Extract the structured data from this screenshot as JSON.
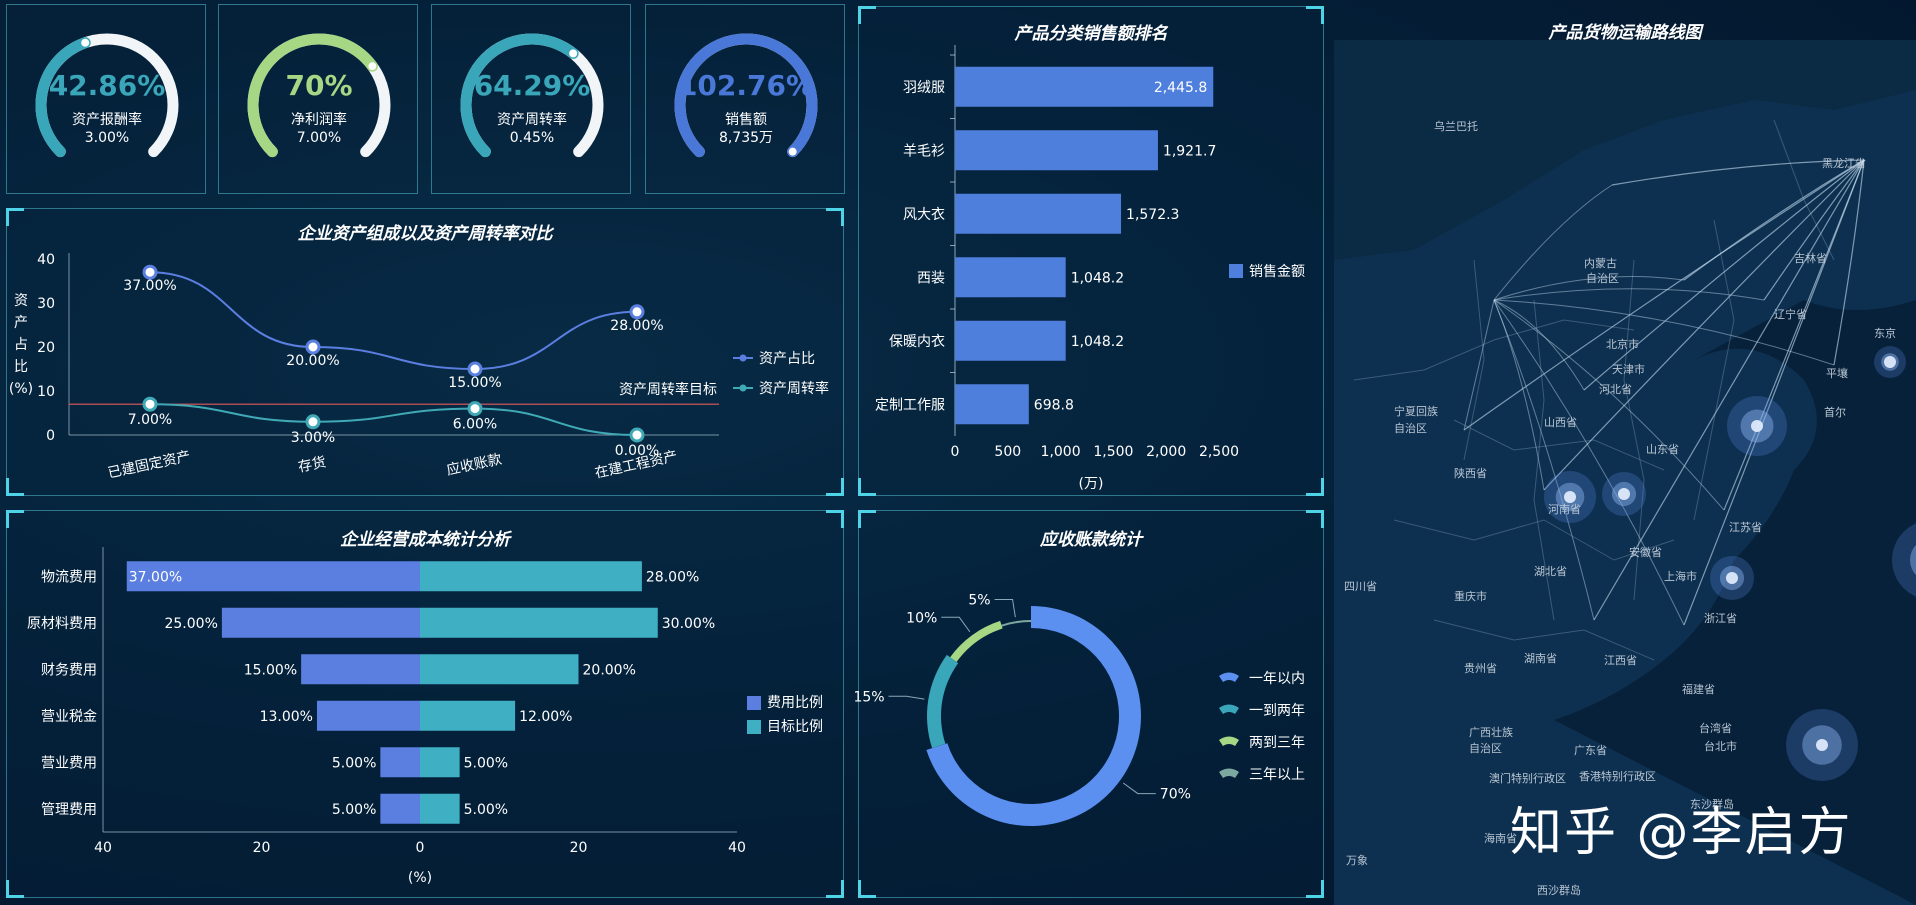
{
  "gauges": [
    {
      "value": "42.86%",
      "label": "资产报酬率",
      "sub": "3.00%",
      "pct": 0.4286,
      "color": "#3aa6b9"
    },
    {
      "value": "70%",
      "label": "净利润率",
      "sub": "7.00%",
      "pct": 0.7,
      "color": "#a6d784"
    },
    {
      "value": "64.29%",
      "label": "资产周转率",
      "sub": "0.45%",
      "pct": 0.6429,
      "color": "#3aa6b9"
    },
    {
      "value": "102.76%",
      "label": "销售额",
      "sub": "8,735万",
      "pct": 1.0,
      "color": "#4a78d8"
    }
  ],
  "chart_data": [
    {
      "id": "asset",
      "type": "line",
      "title": "企业资产组成以及资产周转率对比",
      "ylabel": "资产占比(%)",
      "categories": [
        "已建固定资产",
        "存货",
        "应收账款",
        "在建工程资产"
      ],
      "ylim": [
        0,
        40
      ],
      "yticks": [
        "0",
        "10",
        "20",
        "30",
        "40"
      ],
      "series": [
        {
          "name": "资产占比",
          "values": [
            37,
            20,
            15,
            28
          ],
          "labels": [
            "37.00%",
            "20.00%",
            "15.00%",
            "28.00%"
          ],
          "color": "#5b7fe0"
        },
        {
          "name": "资产周转率",
          "values": [
            7,
            3,
            6,
            0
          ],
          "labels": [
            "7.00%",
            "3.00%",
            "6.00%",
            "0.00%"
          ],
          "color": "#3fa9b5"
        }
      ],
      "markline": {
        "label": "资产周转率目标",
        "value": 7,
        "color": "#e05a5a"
      },
      "legend": "right"
    },
    {
      "id": "sales",
      "type": "bar",
      "title": "产品分类销售额排名",
      "xlabel": "(万)",
      "categories": [
        "羽绒服",
        "羊毛衫",
        "风大衣",
        "西装",
        "保暖内衣",
        "定制工作服"
      ],
      "values": [
        2445.8,
        1921.7,
        1572.3,
        1048.2,
        1048.2,
        698.8
      ],
      "value_labels": [
        "2,445.8",
        "1,921.7",
        "1,572.3",
        "1,048.2",
        "1,048.2",
        "698.8"
      ],
      "xlim": [
        0,
        2500
      ],
      "xticks": [
        "0",
        "500",
        "1,000",
        "1,500",
        "2,000",
        "2,500"
      ],
      "series_name": "销售金额",
      "color": "#4f7fdc",
      "legend": "right"
    },
    {
      "id": "cost",
      "type": "bar",
      "title": "企业经营成本统计分析",
      "xlabel": "(%)",
      "categories": [
        "物流费用",
        "原材料费用",
        "财务费用",
        "营业税金",
        "营业费用",
        "管理费用"
      ],
      "series": [
        {
          "name": "费用比例",
          "values": [
            37,
            25,
            15,
            13,
            5,
            5
          ],
          "labels": [
            "37.00%",
            "25.00%",
            "15.00%",
            "13.00%",
            "5.00%",
            "5.00%"
          ],
          "color": "#5b7fe0"
        },
        {
          "name": "目标比例",
          "values": [
            28,
            30,
            20,
            12,
            5,
            5
          ],
          "labels": [
            "28.00%",
            "30.00%",
            "20.00%",
            "12.00%",
            "5.00%",
            "5.00%"
          ],
          "color": "#3fb0c4"
        }
      ],
      "xlim": [
        -40,
        40
      ],
      "xticks": [
        "40",
        "20",
        "0",
        "20",
        "40"
      ],
      "legend": "right"
    },
    {
      "id": "receivable",
      "type": "pie",
      "title": "应收账款统计",
      "slices": [
        {
          "name": "一年以内",
          "value": 70,
          "label": "70%",
          "color": "#5b8ff0"
        },
        {
          "name": "一到两年",
          "value": 15,
          "label": "15%",
          "color": "#3aa6b9"
        },
        {
          "name": "两到三年",
          "value": 10,
          "label": "10%",
          "color": "#a6d784"
        },
        {
          "name": "三年以上",
          "value": 5,
          "label": "5%",
          "color": "#7da8a0"
        }
      ],
      "legend": "right"
    }
  ],
  "map": {
    "title": "产品货物运输路线图",
    "labels": [
      "乌兰巴托",
      "黑龙江省",
      "吉林省",
      "内蒙古",
      "自治区",
      "辽宁省",
      "北京市",
      "天津市",
      "宁夏回族",
      "自治区",
      "山西省",
      "河北省",
      "平壤",
      "首尔",
      "山东省",
      "陕西省",
      "河南省",
      "江苏省",
      "安徽省",
      "上海市",
      "四川省",
      "湖北省",
      "重庆市",
      "浙江省",
      "湖南省",
      "江西省",
      "贵州省",
      "福建省",
      "台湾省",
      "广西壮族",
      "自治区",
      "广东省",
      "台北市",
      "澳门特别行政区",
      "香港特别行政区",
      "东沙群岛",
      "海南省",
      "西沙群岛",
      "万象",
      "东京"
    ],
    "watermark": "知乎 @李启方"
  }
}
